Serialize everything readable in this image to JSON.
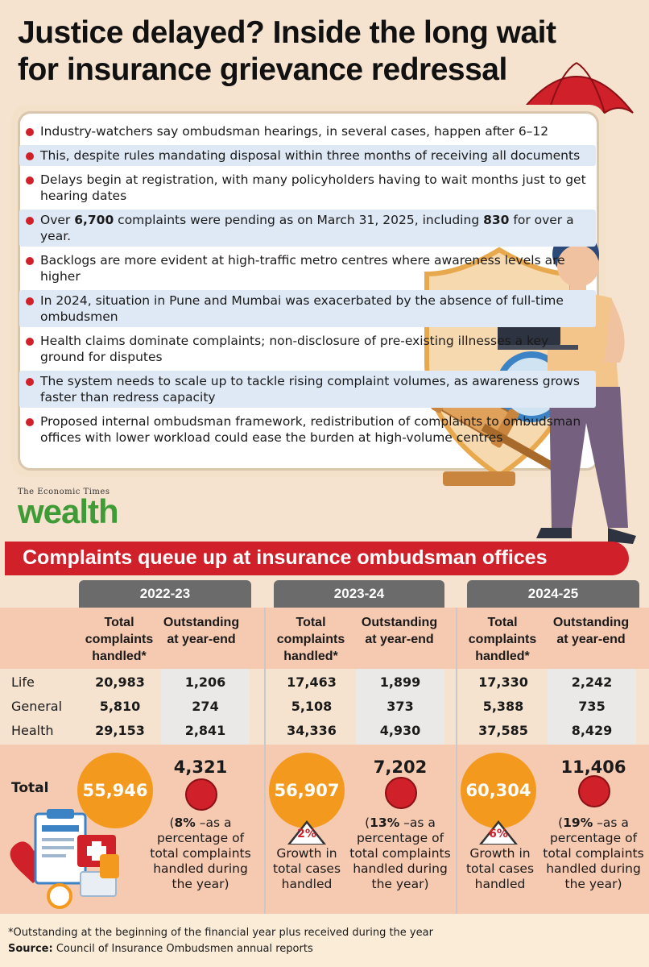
{
  "title": "Justice delayed? Inside the long wait for insurance grievance redressal",
  "bullets": [
    {
      "pre": "Industry-watchers say ombudsman hearings, in several cases, happen after 6–12",
      "b1": "",
      "mid": "",
      "b2": "",
      "post": ""
    },
    {
      "pre": "This, despite rules mandating disposal within three months of receiving all documents",
      "b1": "",
      "mid": "",
      "b2": "",
      "post": ""
    },
    {
      "pre": "Delays begin at registration, with many policyholders having to wait months just to get hearing dates",
      "b1": "",
      "mid": "",
      "b2": "",
      "post": ""
    },
    {
      "pre": "Over ",
      "b1": "6,700",
      "mid": " complaints were pending as on March 31, 2025, including ",
      "b2": "830",
      "post": " for over a year."
    },
    {
      "pre": "Backlogs are more evident at high-traffic metro centres where awareness levels are higher",
      "b1": "",
      "mid": "",
      "b2": "",
      "post": ""
    },
    {
      "pre": "In 2024, situation in Pune and Mumbai was exacerbated by the absence of full-time ombudsmen",
      "b1": "",
      "mid": "",
      "b2": "",
      "post": ""
    },
    {
      "pre": "Health claims dominate complaints; non-disclosure of pre-existing illnesses a key ground for disputes",
      "b1": "",
      "mid": "",
      "b2": "",
      "post": ""
    },
    {
      "pre": "The system needs to scale up to tackle rising complaint volumes, as awareness grows faster than redress capacity",
      "b1": "",
      "mid": "",
      "b2": "",
      "post": ""
    },
    {
      "pre": "Proposed internal ombudsman framework, redistribution of complaints to ombudsman offices with lower workload could ease the burden at high-volume centres",
      "b1": "",
      "mid": "",
      "b2": "",
      "post": ""
    }
  ],
  "logo": {
    "top": "The Economic Times",
    "main": "wealth"
  },
  "banner": "Complaints queue up at insurance ombudsman offices",
  "table": {
    "years": [
      "2022-23",
      "2023-24",
      "2024-25"
    ],
    "col_total": "Total complaints handled*",
    "col_out": "Outstanding at year-end",
    "rows": [
      {
        "label": "Life",
        "values": [
          "20,983",
          "1,206",
          "17,463",
          "1,899",
          "17,330",
          "2,242"
        ]
      },
      {
        "label": "General",
        "values": [
          "5,810",
          "274",
          "5,108",
          "373",
          "5,388",
          "735"
        ]
      },
      {
        "label": "Health",
        "values": [
          "29,153",
          "2,841",
          "34,336",
          "4,930",
          "37,585",
          "8,429"
        ]
      }
    ],
    "total_label": "Total",
    "totals": [
      {
        "total": "55,946",
        "outstanding": "4,321",
        "pct_bold": "8%",
        "pct_text": " –as a percentage of total complaints handled during the year)",
        "growth": "",
        "growth_text": ""
      },
      {
        "total": "56,907",
        "outstanding": "7,202",
        "pct_bold": "13%",
        "pct_text": " –as a percentage of total complaints handled during the year)",
        "growth": "2%",
        "growth_text": "Growth in total cases handled"
      },
      {
        "total": "60,304",
        "outstanding": "11,406",
        "pct_bold": "19%",
        "pct_text": " –as a percentage of total complaints handled during the year)",
        "growth": "6%",
        "growth_text": "Growth in total cases handled"
      }
    ]
  },
  "footnote": "*Outstanding at the beginning of the financial year plus received during the year",
  "source_label": "Source:",
  "source_text": " Council of Insurance Ombudsmen annual reports",
  "colors": {
    "red": "#d0202a",
    "orange": "#f39a1e",
    "green": "#3f9b36",
    "peach": "#f6c9b1",
    "blue_shade": "#dfe9f5"
  }
}
